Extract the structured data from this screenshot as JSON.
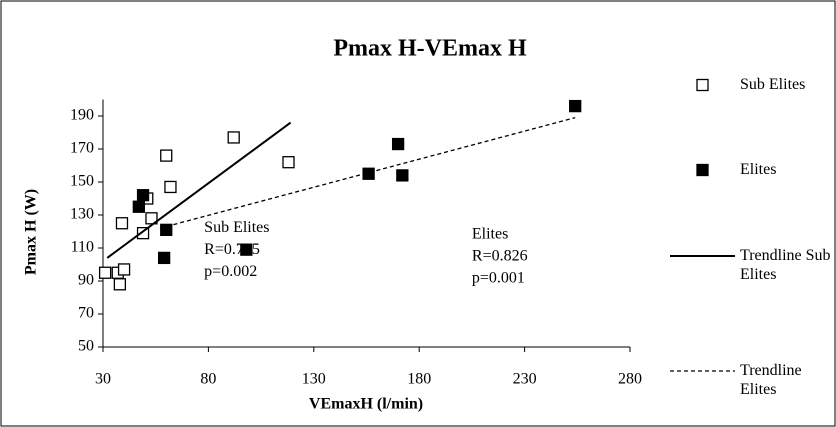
{
  "chart_data": {
    "type": "scatter",
    "title": "Pmax H-VEmax H",
    "x_label": "VEmaxH (l/min)",
    "y_label": "Pmax H (W)",
    "xlim": [
      30,
      280
    ],
    "xticks": [
      30,
      80,
      130,
      180,
      230,
      280
    ],
    "ylim": [
      50,
      200
    ],
    "yticks": [
      50,
      70,
      90,
      110,
      130,
      150,
      170,
      190
    ],
    "grid": false,
    "series": [
      {
        "name": "Sub Elites",
        "marker": "open-square",
        "color": "#000000",
        "x": [
          31,
          37,
          38,
          40,
          39,
          49,
          51,
          53,
          60,
          62,
          92,
          118
        ],
        "values": [
          95,
          95,
          88,
          97,
          125,
          119,
          140,
          128,
          166,
          147,
          177,
          162
        ]
      },
      {
        "name": "Elites",
        "marker": "filled-square",
        "color": "#000000",
        "x": [
          47,
          49,
          60,
          59,
          98,
          156,
          170,
          172,
          254
        ],
        "values": [
          135,
          142,
          121,
          104,
          109,
          155,
          173,
          154,
          196
        ]
      }
    ],
    "trendlines": [
      {
        "name": "Trendline Sub Elites",
        "dashed": false,
        "x": [
          32,
          119
        ],
        "values": [
          104,
          186
        ]
      },
      {
        "name": "Trendline Elites",
        "dashed": true,
        "x": [
          57,
          254
        ],
        "values": [
          122,
          189
        ]
      }
    ],
    "annotations": [
      {
        "lines": [
          "Sub Elites",
          "R=0.795",
          "p=0.002"
        ],
        "x": 78,
        "y": 122
      },
      {
        "lines": [
          "Elites",
          "R=0.826",
          "p=0.001"
        ],
        "x": 205,
        "y": 118
      }
    ]
  }
}
